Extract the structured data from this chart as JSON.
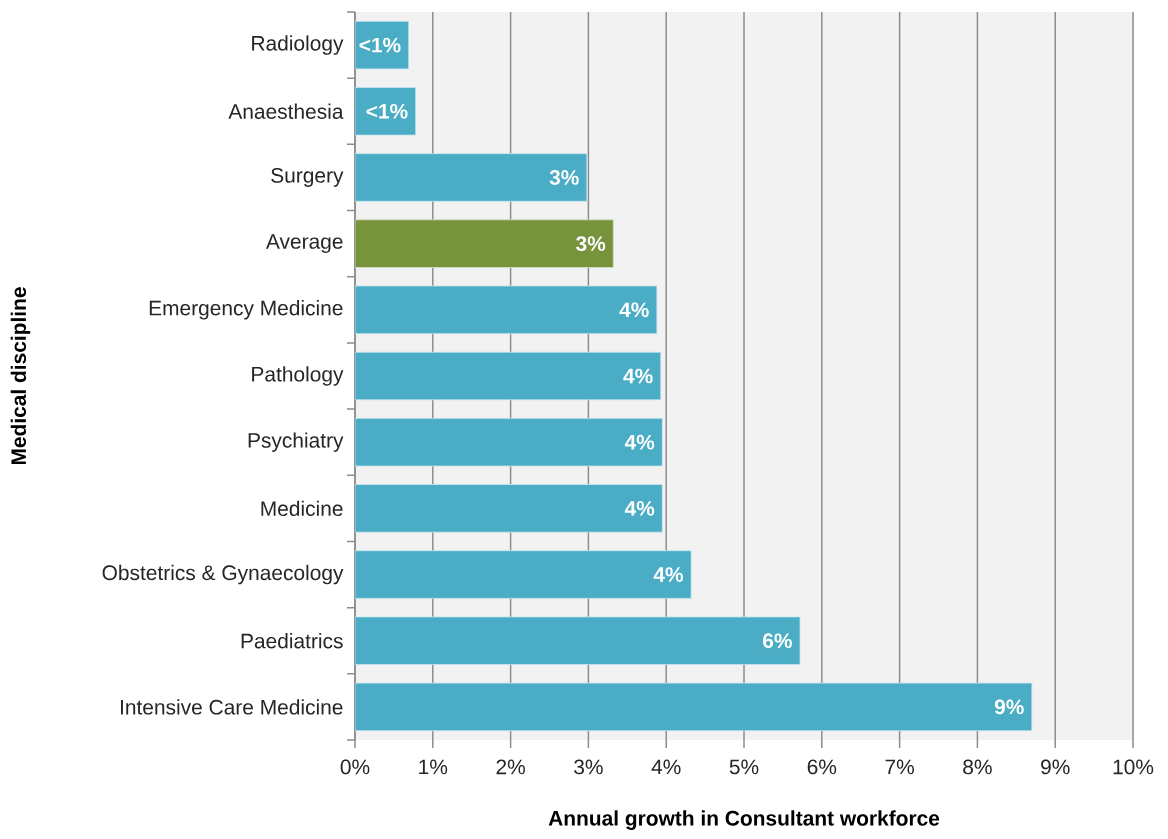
{
  "chart_data": {
    "type": "bar",
    "orientation": "horizontal",
    "xlabel": "Annual growth in Consultant workforce",
    "ylabel": "Medical discipline",
    "categories": [
      "Radiology",
      "Anaesthesia",
      "Surgery",
      "Average",
      "Emergency Medicine",
      "Pathology",
      "Psychiatry",
      "Medicine",
      "Obstetrics & Gynaecology",
      "Paediatrics",
      "Intensive Care Medicine"
    ],
    "values": [
      0.69,
      0.78,
      2.98,
      3.32,
      3.88,
      3.93,
      3.95,
      3.95,
      4.32,
      5.72,
      8.7
    ],
    "value_labels": [
      "<1%",
      "<1%",
      "3%",
      "3%",
      "4%",
      "4%",
      "4%",
      "4%",
      "4%",
      "6%",
      "9%"
    ],
    "colors": [
      "#4bacc6",
      "#4bacc6",
      "#4bacc6",
      "#77933c",
      "#4bacc6",
      "#4bacc6",
      "#4bacc6",
      "#4bacc6",
      "#4bacc6",
      "#4bacc6",
      "#4bacc6"
    ],
    "xlim": [
      0,
      10
    ],
    "xticks": [
      {
        "value": 0,
        "label": "0%"
      },
      {
        "value": 1,
        "label": "1%"
      },
      {
        "value": 2,
        "label": "2%"
      },
      {
        "value": 3,
        "label": "3%"
      },
      {
        "value": 4,
        "label": "4%"
      },
      {
        "value": 5,
        "label": "5%"
      },
      {
        "value": 6,
        "label": "6%"
      },
      {
        "value": 7,
        "label": "7%"
      },
      {
        "value": 8,
        "label": "8%"
      },
      {
        "value": 9,
        "label": "9%"
      },
      {
        "value": 10,
        "label": "10%"
      }
    ],
    "grid": "x"
  }
}
